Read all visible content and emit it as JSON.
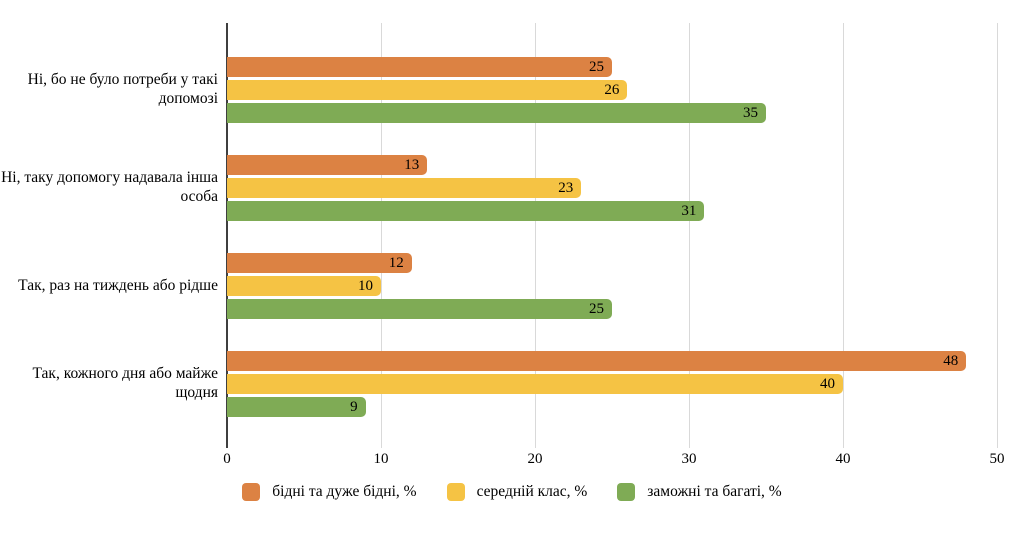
{
  "chart_data": {
    "type": "bar",
    "orientation": "horizontal",
    "title": "",
    "categories": [
      "Ні, бо не було потреби у такі допомозі",
      "Ні, таку допомогу надавала інша особа",
      "Так, раз на тиждень або рідше",
      "Так, кожного дня або майже щодня"
    ],
    "series": [
      {
        "name": "бідні та дуже бідні, %",
        "color": "#DC8243",
        "values": [
          25,
          13,
          12,
          48
        ]
      },
      {
        "name": "середній клас, %",
        "color": "#F5C344",
        "values": [
          26,
          23,
          10,
          40
        ]
      },
      {
        "name": "заможні та багаті, %",
        "color": "#7FAB55",
        "values": [
          35,
          31,
          25,
          9
        ]
      }
    ],
    "x_ticks": [
      "0",
      "10",
      "20",
      "30",
      "40",
      "50"
    ],
    "xlim": [
      0,
      50
    ],
    "grid": true,
    "legend_position": "bottom",
    "value_labels": "inside-end"
  },
  "colors": {
    "background": "#FFFFFF",
    "gridline": "#D9D9D9",
    "axis_line": "#3F3F3F",
    "text": "#000000"
  }
}
